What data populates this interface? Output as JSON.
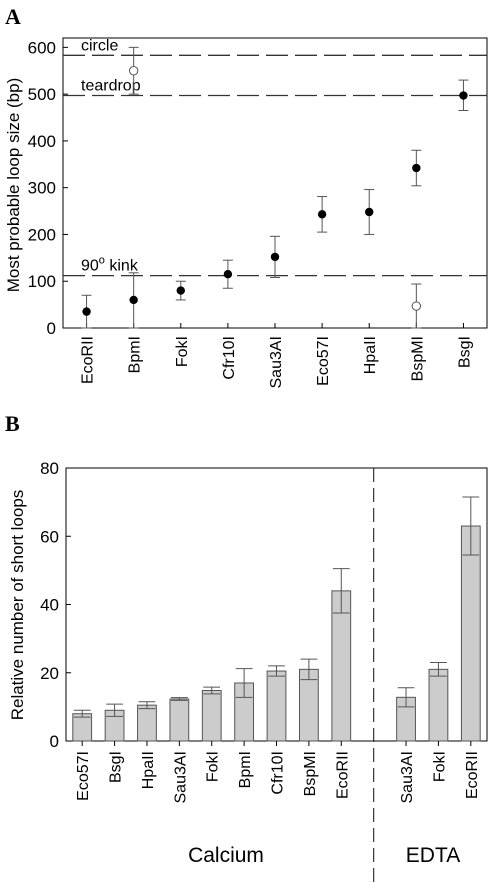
{
  "chart_data": [
    {
      "panel": "A",
      "type": "scatter",
      "ylabel": "Most probable loop size (bp)",
      "ylim": [
        0,
        620
      ],
      "yticks": [
        0,
        100,
        200,
        300,
        400,
        500,
        600
      ],
      "categories": [
        "EcoRII",
        "BpmI",
        "FokI",
        "Cfr10I",
        "Sau3AI",
        "Eco57I",
        "HpaII",
        "BspMI",
        "BsgI"
      ],
      "reference_lines": [
        {
          "label": "circle",
          "y": 583
        },
        {
          "label": "teardrop",
          "y": 497
        },
        {
          "label": "90° kink",
          "label_base": "90",
          "label_sup": "o",
          "label_rest": " kink",
          "y": 112
        }
      ],
      "series": [
        {
          "marker": "filled",
          "points": [
            {
              "category": "EcoRII",
              "y": 35,
              "low": 0,
              "high": 70
            },
            {
              "category": "BpmI",
              "y": 60,
              "low": 0,
              "high": 118
            },
            {
              "category": "FokI",
              "y": 80,
              "low": 60,
              "high": 100
            },
            {
              "category": "Cfr10I",
              "y": 115,
              "low": 85,
              "high": 145
            },
            {
              "category": "Sau3AI",
              "y": 152,
              "low": 108,
              "high": 196
            },
            {
              "category": "Eco57I",
              "y": 243,
              "low": 205,
              "high": 281
            },
            {
              "category": "HpaII",
              "y": 248,
              "low": 200,
              "high": 296
            },
            {
              "category": "BspMI",
              "y": 342,
              "low": 304,
              "high": 380
            },
            {
              "category": "BsgI",
              "y": 497,
              "low": 465,
              "high": 530
            }
          ]
        },
        {
          "marker": "open",
          "points": [
            {
              "category": "BpmI",
              "y": 550,
              "low": 500,
              "high": 600
            },
            {
              "category": "BspMI",
              "y": 47,
              "low": 0,
              "high": 94
            }
          ]
        }
      ]
    },
    {
      "panel": "B",
      "type": "bar",
      "ylabel": "Relative number of short loops",
      "ylim": [
        0,
        80
      ],
      "yticks": [
        0,
        20,
        40,
        60,
        80
      ],
      "groups": [
        {
          "name": "Calcium",
          "categories": [
            "Eco57I",
            "BsgI",
            "HpaII",
            "Sau3AI",
            "FokI",
            "BpmI",
            "Cfr10I",
            "BspMI",
            "EcoRII"
          ],
          "values": [
            8,
            9,
            10.5,
            12.3,
            14.8,
            17,
            20.5,
            21,
            44
          ],
          "errors": [
            1,
            1.8,
            1,
            0.4,
            1,
            4.2,
            1.5,
            3,
            6.5
          ]
        },
        {
          "name": "EDTA",
          "categories": [
            "Sau3AI",
            "FokI",
            "EcoRII"
          ],
          "values": [
            12.8,
            21,
            63
          ],
          "errors": [
            2.8,
            2,
            8.5
          ]
        }
      ],
      "colors": {
        "bar_fill": "#cccccc",
        "bar_stroke": "#555555"
      }
    }
  ]
}
